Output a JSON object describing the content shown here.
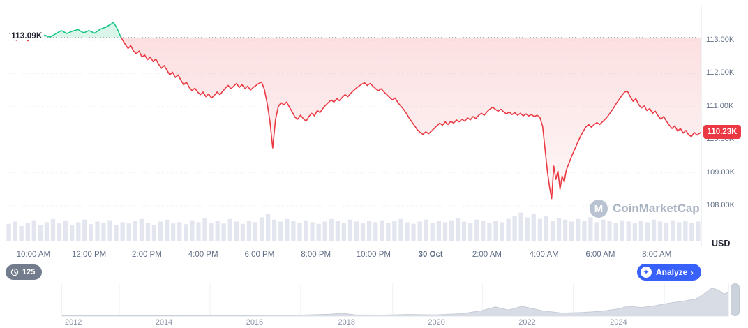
{
  "header": {
    "open_price_marker": "ˆ",
    "open_price_label": "113.09K",
    "currency": "USD"
  },
  "price_badge": {
    "value": "110.23K",
    "bg": "#ea3943"
  },
  "watermark": {
    "brand": "CoinMarketCap",
    "logo_letter": "M"
  },
  "toolbar": {
    "history_count": "125",
    "analyze_label": "Analyze",
    "analyze_chevron": "›"
  },
  "colors": {
    "up": "#16c784",
    "down": "#ea3943",
    "accent_blue": "#3861fb",
    "axis_text": "#616e85",
    "grid": "#e7eaf0",
    "baseline": "#8e97a8",
    "volume_bar": "#e3e6ef",
    "history_fill": "#d8dce4",
    "history_edge": "#c6ccd6"
  },
  "chart_data": [
    {
      "type": "line",
      "name": "price",
      "unit": "USD",
      "baseline_open": 113.09,
      "last_price": 110.23,
      "ylim": [
        107.9,
        113.8
      ],
      "y_ticks": [
        {
          "label": "113.00K",
          "value": 113
        },
        {
          "label": "112.00K",
          "value": 112
        },
        {
          "label": "111.00K",
          "value": 111
        },
        {
          "label": "110.00K",
          "value": 110
        },
        {
          "label": "109.00K",
          "value": 109
        },
        {
          "label": "108.00K",
          "value": 108
        }
      ],
      "x_ticks": [
        {
          "label": "10:00 AM",
          "f": 0.04,
          "bold": false
        },
        {
          "label": "12:00 PM",
          "f": 0.12,
          "bold": false
        },
        {
          "label": "2:00 PM",
          "f": 0.203,
          "bold": false
        },
        {
          "label": "4:00 PM",
          "f": 0.284,
          "bold": false
        },
        {
          "label": "6:00 PM",
          "f": 0.365,
          "bold": false
        },
        {
          "label": "8:00 PM",
          "f": 0.446,
          "bold": false
        },
        {
          "label": "10:00 PM",
          "f": 0.529,
          "bold": false
        },
        {
          "label": "30 Oct",
          "f": 0.611,
          "bold": true
        },
        {
          "label": "2:00 AM",
          "f": 0.692,
          "bold": false
        },
        {
          "label": "4:00 AM",
          "f": 0.774,
          "bold": false
        },
        {
          "label": "6:00 AM",
          "f": 0.855,
          "bold": false
        },
        {
          "label": "8:00 AM",
          "f": 0.936,
          "bold": false
        }
      ],
      "points": [
        [
          0.0,
          113.05
        ],
        [
          0.008,
          113.1
        ],
        [
          0.016,
          113.0
        ],
        [
          0.024,
          113.12
        ],
        [
          0.032,
          112.99
        ],
        [
          0.04,
          113.13
        ],
        [
          0.048,
          113.06
        ],
        [
          0.056,
          113.16
        ],
        [
          0.064,
          113.1
        ],
        [
          0.072,
          113.2
        ],
        [
          0.08,
          113.3
        ],
        [
          0.088,
          113.21
        ],
        [
          0.096,
          113.28
        ],
        [
          0.104,
          113.33
        ],
        [
          0.112,
          113.23
        ],
        [
          0.12,
          113.3
        ],
        [
          0.128,
          113.22
        ],
        [
          0.136,
          113.34
        ],
        [
          0.144,
          113.4
        ],
        [
          0.152,
          113.5
        ],
        [
          0.155,
          113.55
        ],
        [
          0.16,
          113.38
        ],
        [
          0.164,
          113.18
        ],
        [
          0.168,
          113.02
        ],
        [
          0.172,
          112.88
        ],
        [
          0.176,
          112.76
        ],
        [
          0.18,
          112.84
        ],
        [
          0.184,
          112.68
        ],
        [
          0.188,
          112.6
        ],
        [
          0.192,
          112.68
        ],
        [
          0.196,
          112.5
        ],
        [
          0.2,
          112.56
        ],
        [
          0.204,
          112.42
        ],
        [
          0.208,
          112.5
        ],
        [
          0.212,
          112.36
        ],
        [
          0.216,
          112.44
        ],
        [
          0.22,
          112.28
        ],
        [
          0.224,
          112.16
        ],
        [
          0.228,
          112.24
        ],
        [
          0.232,
          112.1
        ],
        [
          0.236,
          111.96
        ],
        [
          0.24,
          112.04
        ],
        [
          0.244,
          111.88
        ],
        [
          0.248,
          111.96
        ],
        [
          0.252,
          111.8
        ],
        [
          0.256,
          111.66
        ],
        [
          0.26,
          111.74
        ],
        [
          0.264,
          111.58
        ],
        [
          0.268,
          111.48
        ],
        [
          0.272,
          111.56
        ],
        [
          0.276,
          111.44
        ],
        [
          0.28,
          111.36
        ],
        [
          0.284,
          111.44
        ],
        [
          0.288,
          111.3
        ],
        [
          0.292,
          111.38
        ],
        [
          0.296,
          111.26
        ],
        [
          0.3,
          111.34
        ],
        [
          0.304,
          111.44
        ],
        [
          0.308,
          111.36
        ],
        [
          0.312,
          111.46
        ],
        [
          0.316,
          111.56
        ],
        [
          0.32,
          111.64
        ],
        [
          0.324,
          111.54
        ],
        [
          0.328,
          111.62
        ],
        [
          0.332,
          111.7
        ],
        [
          0.336,
          111.58
        ],
        [
          0.34,
          111.66
        ],
        [
          0.344,
          111.54
        ],
        [
          0.348,
          111.62
        ],
        [
          0.352,
          111.5
        ],
        [
          0.356,
          111.58
        ],
        [
          0.36,
          111.64
        ],
        [
          0.364,
          111.7
        ],
        [
          0.368,
          111.74
        ],
        [
          0.372,
          111.52
        ],
        [
          0.376,
          111.1
        ],
        [
          0.38,
          110.55
        ],
        [
          0.384,
          109.75
        ],
        [
          0.388,
          110.6
        ],
        [
          0.392,
          111.0
        ],
        [
          0.396,
          111.12
        ],
        [
          0.4,
          111.05
        ],
        [
          0.404,
          111.14
        ],
        [
          0.408,
          110.98
        ],
        [
          0.412,
          110.84
        ],
        [
          0.416,
          110.68
        ],
        [
          0.42,
          110.62
        ],
        [
          0.424,
          110.74
        ],
        [
          0.428,
          110.64
        ],
        [
          0.432,
          110.56
        ],
        [
          0.436,
          110.7
        ],
        [
          0.44,
          110.8
        ],
        [
          0.444,
          110.72
        ],
        [
          0.448,
          110.88
        ],
        [
          0.452,
          110.82
        ],
        [
          0.456,
          110.94
        ],
        [
          0.46,
          111.04
        ],
        [
          0.464,
          111.12
        ],
        [
          0.468,
          111.2
        ],
        [
          0.472,
          111.14
        ],
        [
          0.476,
          111.24
        ],
        [
          0.48,
          111.18
        ],
        [
          0.484,
          111.28
        ],
        [
          0.488,
          111.36
        ],
        [
          0.492,
          111.3
        ],
        [
          0.496,
          111.4
        ],
        [
          0.5,
          111.48
        ],
        [
          0.504,
          111.56
        ],
        [
          0.508,
          111.62
        ],
        [
          0.512,
          111.68
        ],
        [
          0.516,
          111.72
        ],
        [
          0.52,
          111.64
        ],
        [
          0.524,
          111.7
        ],
        [
          0.528,
          111.62
        ],
        [
          0.532,
          111.54
        ],
        [
          0.536,
          111.48
        ],
        [
          0.54,
          111.54
        ],
        [
          0.544,
          111.44
        ],
        [
          0.548,
          111.36
        ],
        [
          0.552,
          111.28
        ],
        [
          0.556,
          111.2
        ],
        [
          0.56,
          111.26
        ],
        [
          0.564,
          111.12
        ],
        [
          0.568,
          111.02
        ],
        [
          0.572,
          110.92
        ],
        [
          0.576,
          110.8
        ],
        [
          0.58,
          110.66
        ],
        [
          0.584,
          110.54
        ],
        [
          0.588,
          110.42
        ],
        [
          0.592,
          110.3
        ],
        [
          0.596,
          110.22
        ],
        [
          0.6,
          110.16
        ],
        [
          0.604,
          110.24
        ],
        [
          0.608,
          110.18
        ],
        [
          0.612,
          110.26
        ],
        [
          0.616,
          110.34
        ],
        [
          0.62,
          110.42
        ],
        [
          0.624,
          110.5
        ],
        [
          0.628,
          110.44
        ],
        [
          0.632,
          110.54
        ],
        [
          0.636,
          110.46
        ],
        [
          0.64,
          110.56
        ],
        [
          0.644,
          110.5
        ],
        [
          0.648,
          110.6
        ],
        [
          0.652,
          110.54
        ],
        [
          0.656,
          110.62
        ],
        [
          0.66,
          110.56
        ],
        [
          0.664,
          110.66
        ],
        [
          0.668,
          110.6
        ],
        [
          0.672,
          110.7
        ],
        [
          0.676,
          110.64
        ],
        [
          0.68,
          110.74
        ],
        [
          0.684,
          110.8
        ],
        [
          0.688,
          110.74
        ],
        [
          0.692,
          110.84
        ],
        [
          0.696,
          110.92
        ],
        [
          0.7,
          110.98
        ],
        [
          0.704,
          110.92
        ],
        [
          0.708,
          110.86
        ],
        [
          0.712,
          110.92
        ],
        [
          0.716,
          110.84
        ],
        [
          0.72,
          110.78
        ],
        [
          0.724,
          110.84
        ],
        [
          0.728,
          110.76
        ],
        [
          0.732,
          110.82
        ],
        [
          0.736,
          110.74
        ],
        [
          0.74,
          110.8
        ],
        [
          0.744,
          110.72
        ],
        [
          0.748,
          110.78
        ],
        [
          0.752,
          110.72
        ],
        [
          0.756,
          110.76
        ],
        [
          0.76,
          110.7
        ],
        [
          0.764,
          110.74
        ],
        [
          0.768,
          110.68
        ],
        [
          0.772,
          110.4
        ],
        [
          0.776,
          109.6
        ],
        [
          0.779,
          109.0
        ],
        [
          0.782,
          108.55
        ],
        [
          0.785,
          108.22
        ],
        [
          0.788,
          109.2
        ],
        [
          0.791,
          108.8
        ],
        [
          0.794,
          109.05
        ],
        [
          0.797,
          108.5
        ],
        [
          0.8,
          108.9
        ],
        [
          0.803,
          108.72
        ],
        [
          0.806,
          109.08
        ],
        [
          0.81,
          109.3
        ],
        [
          0.814,
          109.52
        ],
        [
          0.818,
          109.7
        ],
        [
          0.822,
          109.9
        ],
        [
          0.826,
          110.08
        ],
        [
          0.83,
          110.24
        ],
        [
          0.834,
          110.38
        ],
        [
          0.838,
          110.46
        ],
        [
          0.842,
          110.38
        ],
        [
          0.846,
          110.46
        ],
        [
          0.85,
          110.52
        ],
        [
          0.854,
          110.46
        ],
        [
          0.858,
          110.54
        ],
        [
          0.862,
          110.62
        ],
        [
          0.866,
          110.72
        ],
        [
          0.87,
          110.84
        ],
        [
          0.874,
          110.96
        ],
        [
          0.878,
          111.1
        ],
        [
          0.882,
          111.22
        ],
        [
          0.886,
          111.34
        ],
        [
          0.89,
          111.44
        ],
        [
          0.894,
          111.46
        ],
        [
          0.898,
          111.3
        ],
        [
          0.902,
          111.16
        ],
        [
          0.906,
          111.24
        ],
        [
          0.91,
          111.06
        ],
        [
          0.914,
          110.96
        ],
        [
          0.918,
          111.02
        ],
        [
          0.922,
          110.88
        ],
        [
          0.926,
          110.94
        ],
        [
          0.93,
          110.8
        ],
        [
          0.934,
          110.86
        ],
        [
          0.938,
          110.72
        ],
        [
          0.942,
          110.62
        ],
        [
          0.946,
          110.7
        ],
        [
          0.95,
          110.56
        ],
        [
          0.954,
          110.44
        ],
        [
          0.958,
          110.34
        ],
        [
          0.962,
          110.42
        ],
        [
          0.966,
          110.26
        ],
        [
          0.97,
          110.34
        ],
        [
          0.974,
          110.2
        ],
        [
          0.978,
          110.28
        ],
        [
          0.982,
          110.14
        ],
        [
          0.986,
          110.1
        ],
        [
          0.99,
          110.22
        ],
        [
          0.994,
          110.14
        ],
        [
          1.0,
          110.23
        ]
      ]
    },
    {
      "type": "bar",
      "name": "volume",
      "values": [
        0.55,
        0.62,
        0.48,
        0.58,
        0.66,
        0.52,
        0.6,
        0.7,
        0.56,
        0.64,
        0.5,
        0.6,
        0.68,
        0.54,
        0.62,
        0.58,
        0.66,
        0.52,
        0.6,
        0.56,
        0.64,
        0.7,
        0.58,
        0.52,
        0.62,
        0.68,
        0.56,
        0.6,
        0.54,
        0.66,
        0.6,
        0.72,
        0.58,
        0.64,
        0.56,
        0.7,
        0.62,
        0.55,
        0.65,
        0.6,
        0.75,
        0.85,
        0.68,
        0.62,
        0.7,
        0.64,
        0.58,
        0.66,
        0.6,
        0.55,
        0.62,
        0.7,
        0.65,
        0.58,
        0.68,
        0.62,
        0.56,
        0.64,
        0.6,
        0.66,
        0.58,
        0.64,
        0.7,
        0.6,
        0.55,
        0.62,
        0.68,
        0.58,
        0.65,
        0.6,
        0.66,
        0.72,
        0.62,
        0.58,
        0.68,
        0.63,
        0.57,
        0.65,
        0.6,
        0.7,
        0.8,
        0.9,
        0.75,
        0.85,
        0.7,
        0.78,
        0.65,
        0.72,
        0.68,
        0.62,
        0.7,
        0.65,
        0.75,
        0.6,
        0.68,
        0.64,
        0.58,
        0.66,
        0.62,
        0.56,
        0.64,
        0.6,
        0.68,
        0.62,
        0.58,
        0.66,
        0.6,
        0.64,
        0.58,
        0.62
      ]
    },
    {
      "type": "area",
      "name": "all-time-history",
      "x_ticks": [
        {
          "label": "2012",
          "f": 0.018
        },
        {
          "label": "2014",
          "f": 0.154
        },
        {
          "label": "2016",
          "f": 0.29
        },
        {
          "label": "2018",
          "f": 0.428
        },
        {
          "label": "2020",
          "f": 0.563
        },
        {
          "label": "2022",
          "f": 0.699
        },
        {
          "label": "2024",
          "f": 0.836
        }
      ],
      "grid_f": [
        0.086,
        0.222,
        0.358,
        0.496,
        0.631,
        0.767,
        0.904
      ],
      "points": [
        [
          0.0,
          0.015
        ],
        [
          0.15,
          0.015
        ],
        [
          0.29,
          0.02
        ],
        [
          0.35,
          0.03
        ],
        [
          0.4,
          0.06
        ],
        [
          0.42,
          0.09
        ],
        [
          0.44,
          0.04
        ],
        [
          0.48,
          0.035
        ],
        [
          0.52,
          0.055
        ],
        [
          0.56,
          0.04
        ],
        [
          0.6,
          0.08
        ],
        [
          0.63,
          0.18
        ],
        [
          0.65,
          0.3
        ],
        [
          0.67,
          0.2
        ],
        [
          0.69,
          0.32
        ],
        [
          0.72,
          0.18
        ],
        [
          0.75,
          0.1
        ],
        [
          0.78,
          0.12
        ],
        [
          0.81,
          0.16
        ],
        [
          0.83,
          0.22
        ],
        [
          0.85,
          0.32
        ],
        [
          0.87,
          0.28
        ],
        [
          0.89,
          0.34
        ],
        [
          0.91,
          0.42
        ],
        [
          0.93,
          0.48
        ],
        [
          0.95,
          0.55
        ],
        [
          0.965,
          0.75
        ],
        [
          0.975,
          0.92
        ],
        [
          0.985,
          0.85
        ],
        [
          0.993,
          0.72
        ],
        [
          1.0,
          0.78
        ]
      ]
    }
  ]
}
